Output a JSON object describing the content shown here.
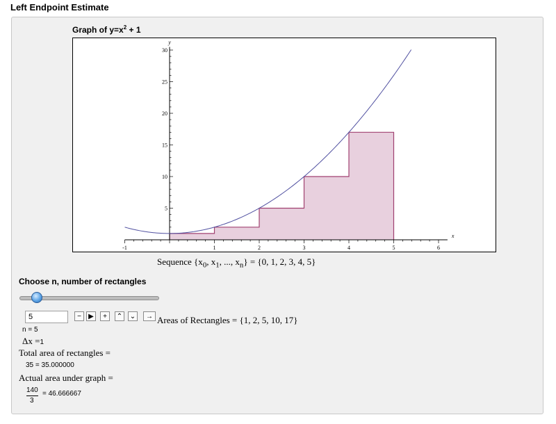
{
  "window": {
    "title": "Left Endpoint Estimate"
  },
  "graph": {
    "title_prefix": "Graph of y=x",
    "title_exp": "2",
    "title_suffix": " + 1"
  },
  "colors": {
    "curve": "#5050a0",
    "rect_stroke": "#a04070",
    "rect_fill": "#e8d0de",
    "panel_bg": "#f0f0f0"
  },
  "chart_data": {
    "type": "area",
    "function": "x^2 + 1",
    "xlabel": "x",
    "ylabel": "y",
    "xlim": [
      -1,
      6.2
    ],
    "ylim": [
      0,
      30.5
    ],
    "x_ticks": [
      -1,
      1,
      2,
      3,
      4,
      5,
      6
    ],
    "x_tick_labels": [
      "-1",
      "1",
      "2",
      "3",
      "4",
      "5",
      "6"
    ],
    "y_ticks": [
      5,
      10,
      15,
      20,
      25,
      30
    ],
    "y_tick_labels": [
      "5",
      "10",
      "15",
      "20",
      "25",
      "30"
    ],
    "curve_x_range": [
      -1,
      5.39
    ],
    "rectangles": [
      {
        "x0": 0,
        "x1": 1,
        "height": 1
      },
      {
        "x0": 1,
        "x1": 2,
        "height": 2
      },
      {
        "x0": 2,
        "x1": 3,
        "height": 5
      },
      {
        "x0": 3,
        "x1": 4,
        "height": 10
      },
      {
        "x0": 4,
        "x1": 5,
        "height": 17
      }
    ],
    "legend": "none",
    "grid": false
  },
  "sequence": {
    "label": "Sequence {x",
    "sub0": "0",
    "sep1": ", x",
    "sub1": "1",
    "sep2": ", ..., x",
    "subn": "n",
    "values": "} = {0, 1, 2, 3, 4, 5}"
  },
  "controls": {
    "choose_label": "Choose n, number of rectangles",
    "slider_value": 5,
    "slider_range": [
      1,
      50
    ],
    "n_value": "5",
    "btn_minus": "−",
    "btn_play": "▶",
    "btn_plus": "+",
    "btn_faster": "⌃",
    "btn_slower": "⌄",
    "btn_direction": "→"
  },
  "results": {
    "areas_label": "Areas of Rectangles = {1, 2, 5, 10, 17}",
    "n_line": "n = 5",
    "dx_label": "Δx =",
    "dx_value": "1",
    "total_label": "Total area of rectangles =",
    "total_value": "35 = 35.000000",
    "actual_label": "Actual area under graph =",
    "actual_num": "140",
    "actual_den": "3",
    "actual_value": "= 46.666667"
  }
}
